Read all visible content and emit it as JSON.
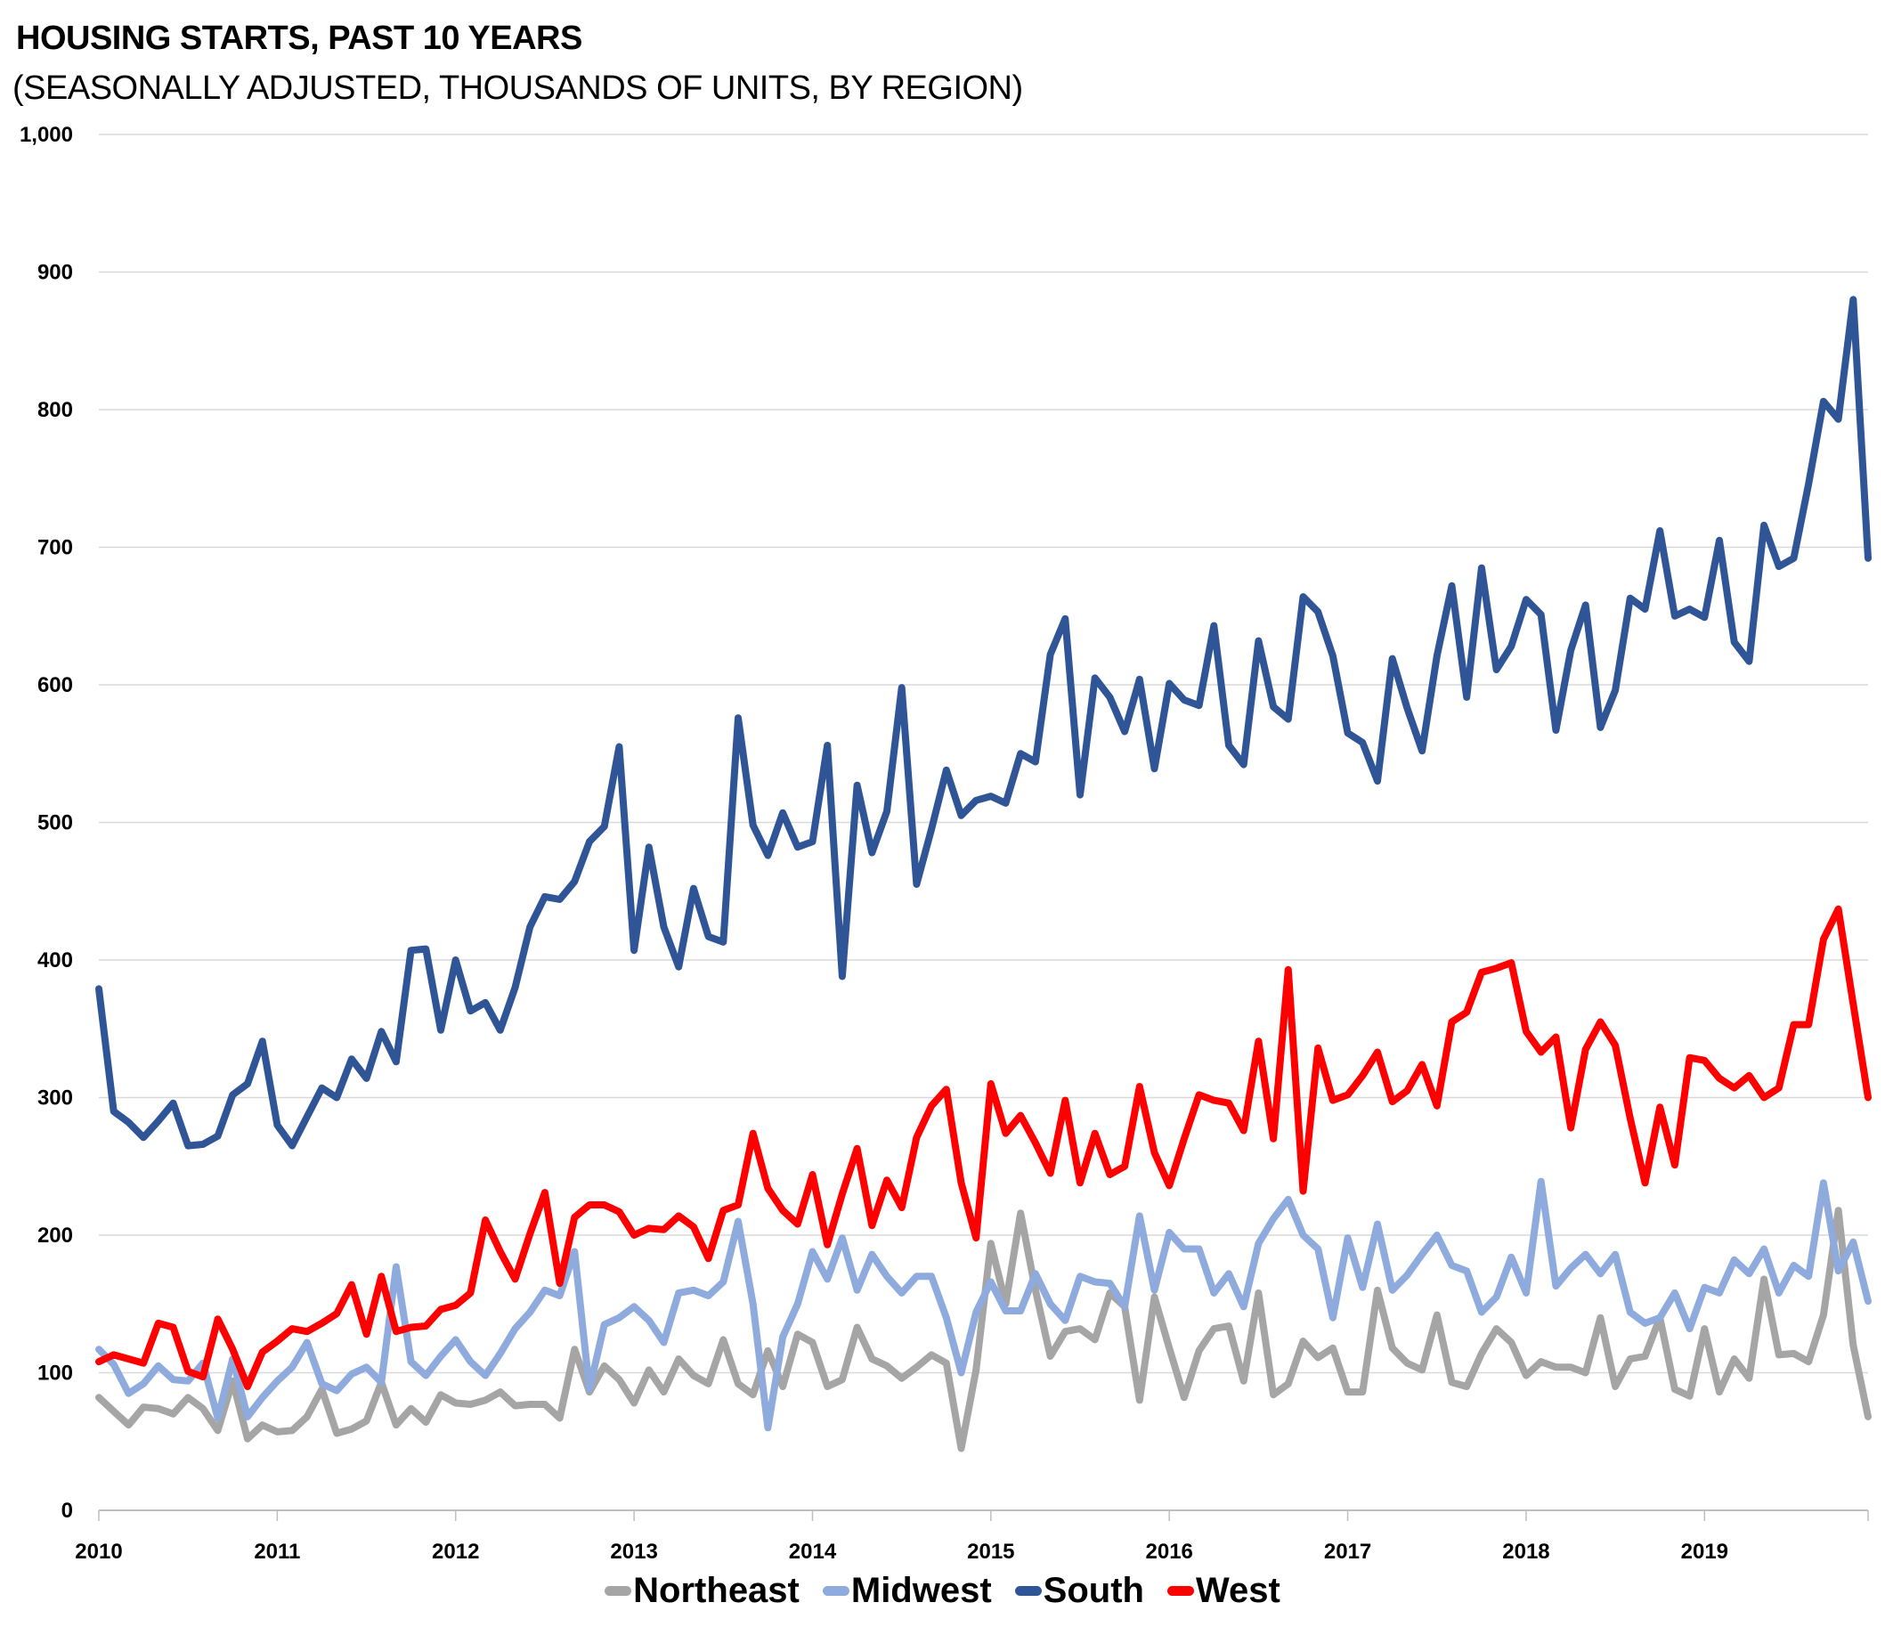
{
  "chart_data": {
    "type": "line",
    "title": "HOUSING STARTS, PAST 10 YEARS",
    "subtitle": "(SEASONALLY ADJUSTED, THOUSANDS OF UNITS, BY REGION)",
    "xlabel": "",
    "ylabel": "",
    "ylim": [
      0,
      1000
    ],
    "yticks": [
      "0",
      "100",
      "200",
      "300",
      "400",
      "500",
      "600",
      "700",
      "800",
      "900",
      "1,000"
    ],
    "ytick_values": [
      0,
      100,
      200,
      300,
      400,
      500,
      600,
      700,
      800,
      900,
      1000
    ],
    "xticks": [
      "2010",
      "2011",
      "2012",
      "2013",
      "2014",
      "2015",
      "2016",
      "2017",
      "2018",
      "2019"
    ],
    "x_start": "2010-01",
    "x_frequency": "monthly",
    "n_points": 120,
    "grid": true,
    "legend_position": "bottom",
    "series": [
      {
        "name": "Northeast",
        "color": "#a5a5a5",
        "values": [
          82,
          72,
          62,
          75,
          74,
          70,
          82,
          74,
          58,
          94,
          52,
          62,
          57,
          58,
          68,
          88,
          56,
          59,
          65,
          93,
          62,
          74,
          64,
          84,
          78,
          77,
          80,
          86,
          76,
          77,
          77,
          67,
          117,
          86,
          105,
          95,
          78,
          102,
          86,
          110,
          98,
          92,
          124,
          92,
          84,
          116,
          90,
          128,
          122,
          90,
          95,
          133,
          110,
          105,
          96,
          104,
          113,
          107,
          45,
          102,
          194,
          150,
          216,
          160,
          112,
          130,
          132,
          124,
          158,
          148,
          80,
          155,
          118,
          82,
          116,
          132,
          134,
          94,
          158,
          84,
          92,
          123,
          111,
          118,
          86,
          86,
          160,
          118,
          107,
          102,
          142,
          93,
          90,
          114,
          132,
          122,
          98,
          108,
          104,
          104,
          100,
          140,
          90,
          110,
          112,
          140,
          88,
          83,
          132,
          86,
          110,
          96,
          168,
          113,
          114,
          108,
          142,
          218,
          120,
          68
        ]
      },
      {
        "name": "Midwest",
        "color": "#8faadc",
        "values": [
          117,
          106,
          85,
          92,
          105,
          95,
          94,
          107,
          67,
          110,
          68,
          82,
          94,
          104,
          122,
          92,
          87,
          99,
          104,
          93,
          177,
          108,
          98,
          112,
          124,
          108,
          98,
          114,
          132,
          144,
          160,
          156,
          188,
          88,
          135,
          140,
          148,
          138,
          122,
          158,
          160,
          156,
          166,
          210,
          150,
          60,
          126,
          150,
          188,
          168,
          198,
          160,
          186,
          170,
          158,
          170,
          170,
          140,
          100,
          144,
          166,
          145,
          145,
          172,
          150,
          138,
          170,
          166,
          165,
          148,
          214,
          160,
          202,
          190,
          190,
          158,
          172,
          148,
          194,
          212,
          226,
          200,
          190,
          140,
          198,
          162,
          208,
          160,
          171,
          186,
          200,
          178,
          174,
          144,
          155,
          184,
          158,
          239,
          163,
          176,
          186,
          172,
          186,
          144,
          136,
          140,
          158,
          132,
          162,
          158,
          182,
          172,
          190,
          158,
          178,
          170,
          238,
          174,
          195,
          152
        ]
      },
      {
        "name": "South",
        "color": "#2f5597",
        "values": [
          379,
          290,
          282,
          271,
          283,
          296,
          265,
          266,
          272,
          302,
          310,
          341,
          280,
          265,
          286,
          307,
          300,
          328,
          314,
          348,
          326,
          407,
          408,
          349,
          400,
          363,
          369,
          349,
          380,
          424,
          446,
          444,
          457,
          486,
          497,
          555,
          407,
          482,
          424,
          395,
          452,
          417,
          413,
          576,
          498,
          476,
          507,
          482,
          486,
          556,
          388,
          527,
          478,
          508,
          598,
          455,
          495,
          538,
          505,
          516,
          519,
          514,
          550,
          544,
          622,
          648,
          520,
          605,
          591,
          566,
          604,
          539,
          601,
          589,
          585,
          643,
          556,
          542,
          632,
          584,
          575,
          664,
          653,
          621,
          565,
          558,
          530,
          619,
          583,
          552,
          621,
          672,
          591,
          685,
          611,
          628,
          662,
          651,
          567,
          625,
          658,
          569,
          596,
          663,
          655,
          712,
          650,
          655,
          649,
          705,
          631,
          617,
          716,
          686,
          692,
          746,
          806,
          793,
          880,
          692
        ]
      },
      {
        "name": "West",
        "color": "#ff0000",
        "values": [
          108,
          113,
          110,
          107,
          136,
          133,
          101,
          97,
          139,
          117,
          90,
          115,
          123,
          132,
          130,
          136,
          143,
          164,
          128,
          170,
          130,
          133,
          134,
          146,
          149,
          158,
          211,
          188,
          168,
          201,
          231,
          165,
          213,
          222,
          222,
          217,
          200,
          205,
          204,
          214,
          206,
          183,
          218,
          222,
          274,
          234,
          218,
          208,
          244,
          193,
          230,
          263,
          207,
          240,
          220,
          271,
          294,
          306,
          238,
          198,
          310,
          274,
          287,
          267,
          245,
          298,
          238,
          274,
          244,
          250,
          308,
          260,
          236,
          270,
          302,
          298,
          296,
          276,
          341,
          270,
          393,
          232,
          336,
          298,
          302,
          316,
          333,
          297,
          305,
          324,
          294,
          355,
          362,
          391,
          394,
          398,
          348,
          333,
          344,
          278,
          335,
          355,
          338,
          285,
          238,
          293,
          251,
          329,
          327,
          314,
          307,
          316,
          300,
          307,
          353,
          353,
          415,
          437,
          368,
          300
        ]
      }
    ]
  }
}
